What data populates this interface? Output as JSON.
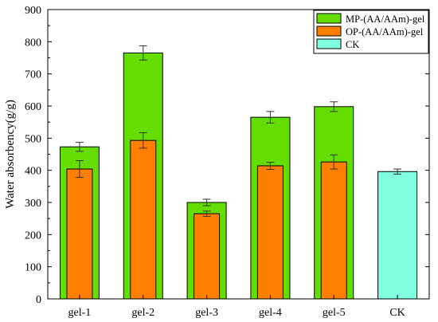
{
  "chart_data": {
    "type": "bar",
    "categories": [
      "gel-1",
      "gel-2",
      "gel-3",
      "gel-4",
      "gel-5",
      "CK"
    ],
    "ylabel": "Water absorbency(g/g)",
    "xlabel": "",
    "ylim": [
      0,
      900
    ],
    "yticks": [
      0,
      100,
      200,
      300,
      400,
      500,
      600,
      700,
      800,
      900
    ],
    "grid": false,
    "legend_position": "top-right",
    "series": [
      {
        "name": "MP-(AA/AAm)-gel",
        "color": "#66dd00",
        "values": [
          473,
          765,
          300,
          565,
          598,
          null
        ],
        "errors": [
          14,
          22,
          10,
          18,
          15,
          null
        ]
      },
      {
        "name": "OP-(AA/AAm)-gel",
        "color": "#ff7f00",
        "values": [
          404,
          493,
          265,
          414,
          426,
          null
        ],
        "errors": [
          26,
          24,
          8,
          11,
          22,
          null
        ]
      },
      {
        "name": "CK",
        "color": "#7fffe0",
        "values": [
          null,
          null,
          null,
          null,
          null,
          396
        ],
        "errors": [
          null,
          null,
          null,
          null,
          null,
          8
        ]
      }
    ]
  }
}
